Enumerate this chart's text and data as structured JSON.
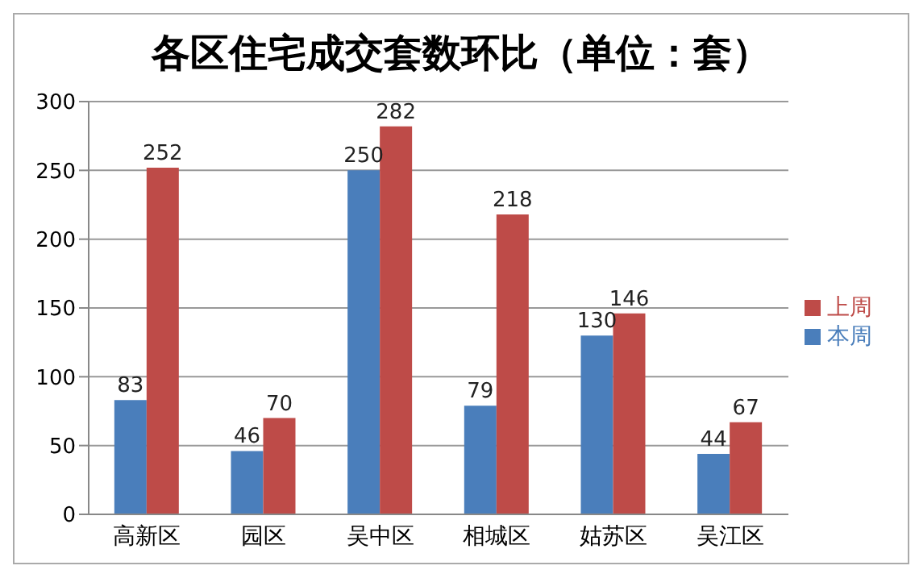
{
  "chart_data": {
    "type": "bar",
    "title": "各区住宅成交套数环比（单位：套）",
    "categories": [
      "高新区",
      "园区",
      "吴中区",
      "相城区",
      "姑苏区",
      "吴江区"
    ],
    "series": [
      {
        "name": "本周",
        "color": "#4a7ebb",
        "values": [
          83,
          46,
          250,
          79,
          130,
          44
        ]
      },
      {
        "name": "上周",
        "color": "#be4b48",
        "values": [
          252,
          70,
          282,
          218,
          146,
          67
        ]
      }
    ],
    "ylim": [
      0,
      300
    ],
    "yticks": [
      0,
      50,
      100,
      150,
      200,
      250,
      300
    ],
    "grid": "y",
    "legend": "right",
    "data_labels": true
  }
}
